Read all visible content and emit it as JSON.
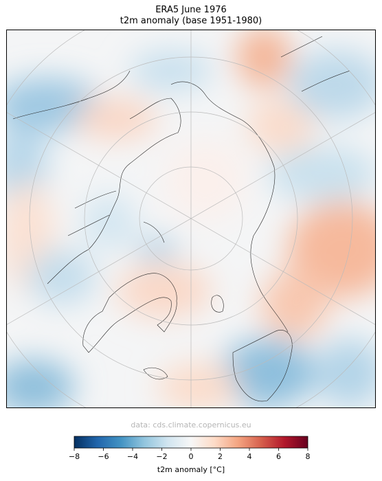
{
  "title": "ERA5 June 1976",
  "subtitle": "t2m anomaly (base 1951-1980)",
  "credit": "data: cds.climate.copernicus.eu",
  "colorbar": {
    "label": "t2m anomaly [°C]",
    "min": -8,
    "max": 8,
    "ticks": [
      -8,
      -6,
      -4,
      -2,
      0,
      2,
      4,
      6,
      8
    ],
    "tick_labels": [
      "−8",
      "−6",
      "−4",
      "−2",
      "0",
      "2",
      "4",
      "6",
      "8"
    ],
    "colormap": "RdBu_r",
    "colors": [
      "#053061",
      "#2166ac",
      "#4393c3",
      "#92c5de",
      "#d1e5f0",
      "#f7f7f7",
      "#fddbc7",
      "#f4a582",
      "#d6604d",
      "#b2182b",
      "#67001f"
    ]
  },
  "map": {
    "projection": "north-polar-stereographic",
    "gridlines": true,
    "coastlines": true,
    "background": "#f4f5f6"
  }
}
